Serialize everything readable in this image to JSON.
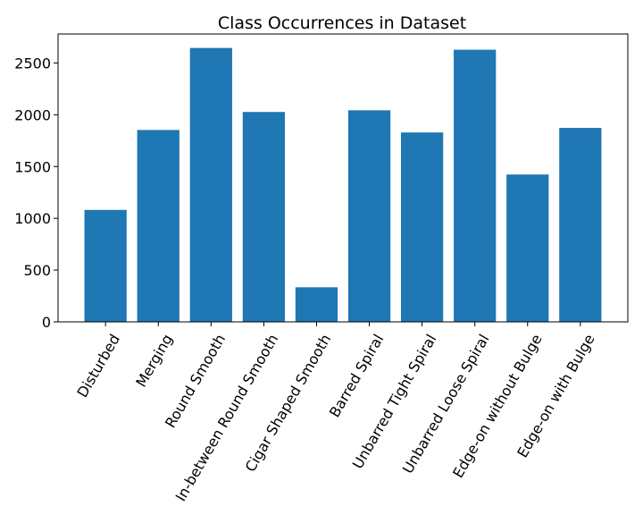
{
  "chart_data": {
    "type": "bar",
    "title": "Class Occurrences in Dataset",
    "xlabel": "",
    "ylabel": "",
    "categories": [
      "Disturbed",
      "Merging",
      "Round Smooth",
      "In-between Round Smooth",
      "Cigar Shaped Smooth",
      "Barred Spiral",
      "Unbarred Tight Spiral",
      "Unbarred Loose Spiral",
      "Edge-on without Bulge",
      "Edge-on with Bulge"
    ],
    "values": [
      1081,
      1853,
      2645,
      2027,
      334,
      2043,
      1829,
      2628,
      1423,
      1873
    ],
    "ylim": [
      0,
      2780
    ],
    "yticks": [
      0,
      500,
      1000,
      1500,
      2000,
      2500
    ],
    "ytick_labels": [
      "0",
      "500",
      "1000",
      "1500",
      "2000",
      "2500"
    ],
    "grid": false,
    "bar_color": "#1f77b4"
  }
}
